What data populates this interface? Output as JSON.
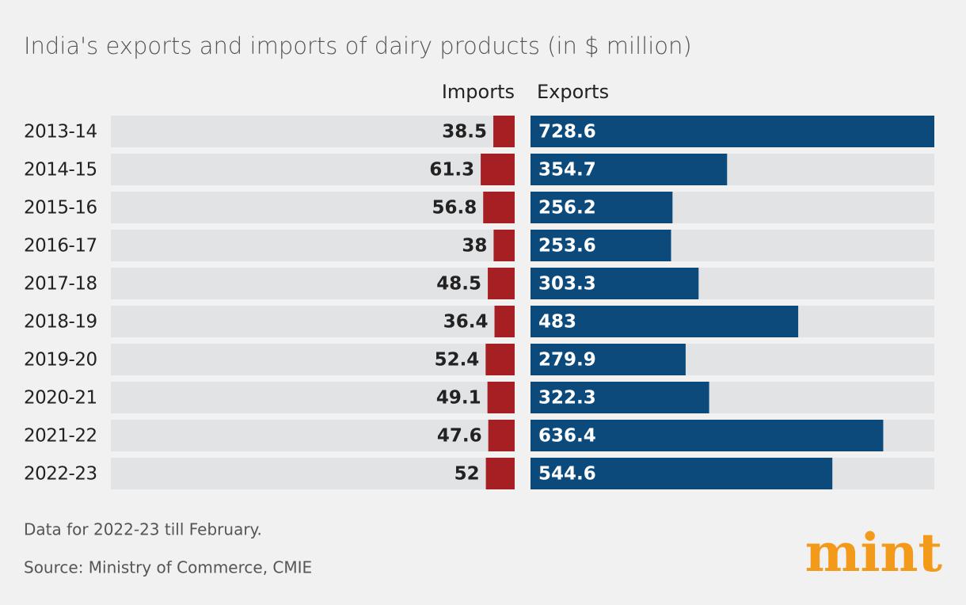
{
  "chart_data": {
    "type": "butterfly-bar",
    "title": "India's exports and imports of dairy products (in $ million)",
    "categories": [
      "2013-14",
      "2014-15",
      "2015-16",
      "2016-17",
      "2017-18",
      "2018-19",
      "2019-20",
      "2020-21",
      "2021-22",
      "2022-23"
    ],
    "series": [
      {
        "name": "Imports",
        "color": "#a61f23",
        "values": [
          38.5,
          61.3,
          56.8,
          38,
          48.5,
          36.4,
          52.4,
          49.1,
          47.6,
          52
        ]
      },
      {
        "name": "Exports",
        "color": "#0c4a7b",
        "values": [
          728.6,
          354.7,
          256.2,
          253.6,
          303.3,
          483,
          279.9,
          322.3,
          636.4,
          544.6
        ]
      }
    ],
    "xlim": [
      0,
      728.6
    ]
  },
  "footnote": "Data for 2022-23 till February.",
  "source": "Source: Ministry of Commerce, CMIE",
  "logo": "mint"
}
